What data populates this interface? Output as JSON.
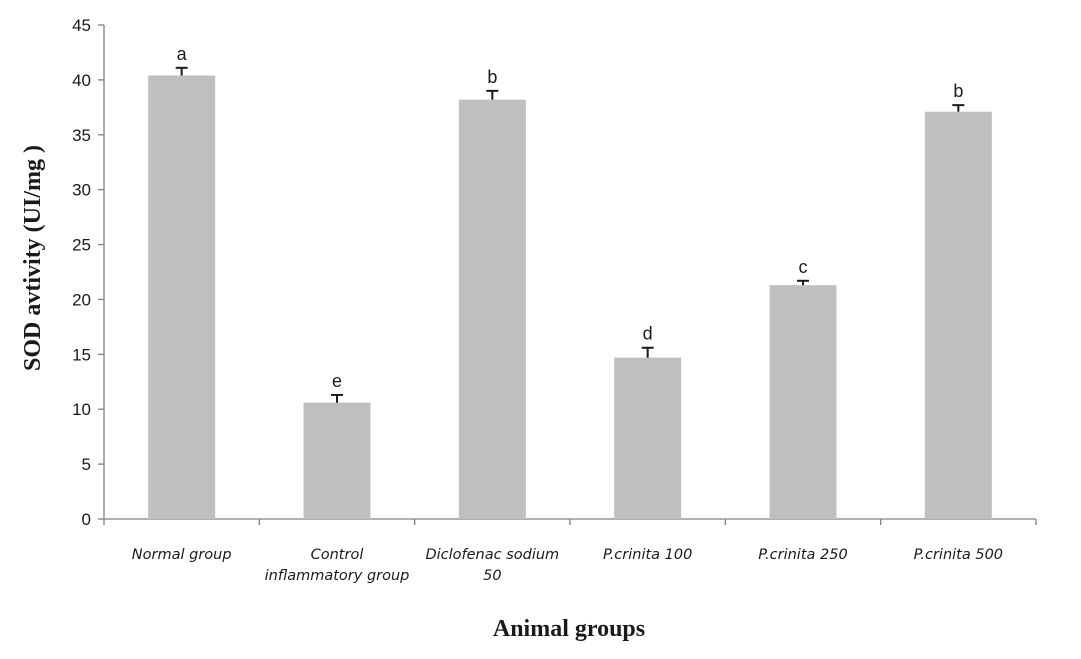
{
  "chart_data": {
    "type": "bar",
    "title": "",
    "xlabel": "Animal groups",
    "ylabel": "SOD avtivity (UI/mg )",
    "ylim": [
      0,
      45
    ],
    "yticks": [
      0,
      5,
      10,
      15,
      20,
      25,
      30,
      35,
      40,
      45
    ],
    "grid": false,
    "legend": "none",
    "bar_color": "#bfbfbf",
    "categories": [
      [
        "Normal group"
      ],
      [
        "Control",
        "inflammatory group"
      ],
      [
        "Diclofenac sodium",
        "50"
      ],
      [
        "P.crinita 100"
      ],
      [
        "P.crinita 250"
      ],
      [
        "P.crinita 500"
      ]
    ],
    "values": [
      40.4,
      10.6,
      38.2,
      14.7,
      21.3,
      37.1
    ],
    "errors": [
      0.7,
      0.7,
      0.8,
      0.9,
      0.4,
      0.6
    ],
    "significance_letters": [
      "a",
      "e",
      "b",
      "d",
      "c",
      "b"
    ]
  }
}
